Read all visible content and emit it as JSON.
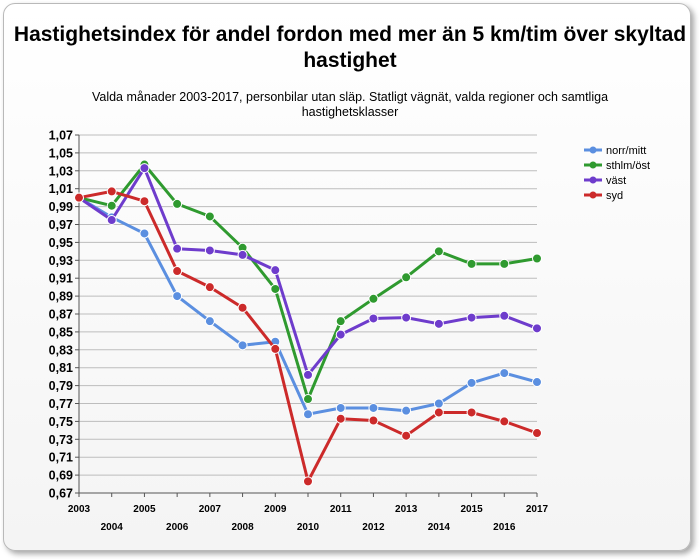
{
  "chart_data": {
    "type": "line",
    "title": "Hastighetsindex för andel fordon med mer än 5 km/tim över skyltad hastighet",
    "subtitle": "Valda månader 2003-2017, personbilar utan släp. Statligt vägnät, valda regioner och samtliga hastighetsklasser",
    "x": [
      "2003",
      "2004",
      "2005",
      "2006",
      "2007",
      "2008",
      "2009",
      "2010",
      "2011",
      "2012",
      "2013",
      "2014",
      "2015",
      "2016",
      "2017"
    ],
    "ylim": [
      0.67,
      1.07
    ],
    "yticks": [
      "0,67",
      "0,69",
      "0,71",
      "0,73",
      "0,75",
      "0,77",
      "0,79",
      "0,81",
      "0,83",
      "0,85",
      "0,87",
      "0,89",
      "0,91",
      "0,93",
      "0,95",
      "0,97",
      "0,99",
      "1,01",
      "1,03",
      "1,05",
      "1,07"
    ],
    "grid": true,
    "legend_position": "right",
    "series": [
      {
        "name": "norr/mitt",
        "color": "#5b8fe0",
        "values": [
          1.0,
          0.978,
          0.96,
          0.89,
          0.862,
          0.835,
          0.839,
          0.758,
          0.765,
          0.765,
          0.762,
          0.77,
          0.793,
          0.804,
          0.794
        ]
      },
      {
        "name": "sthlm/öst",
        "color": "#2f9a2f",
        "values": [
          1.0,
          0.991,
          1.037,
          0.993,
          0.979,
          0.944,
          0.898,
          0.775,
          0.862,
          0.887,
          0.911,
          0.94,
          0.926,
          0.926,
          0.932
        ]
      },
      {
        "name": "väst",
        "color": "#6e3ccc",
        "values": [
          1.0,
          0.975,
          1.033,
          0.943,
          0.941,
          0.936,
          0.919,
          0.802,
          0.847,
          0.865,
          0.866,
          0.859,
          0.866,
          0.868,
          0.854
        ]
      },
      {
        "name": "syd",
        "color": "#cc2a2a",
        "values": [
          1.0,
          1.007,
          0.996,
          0.918,
          0.9,
          0.877,
          0.831,
          0.683,
          0.753,
          0.751,
          0.734,
          0.76,
          0.76,
          0.75,
          0.737
        ]
      }
    ]
  }
}
